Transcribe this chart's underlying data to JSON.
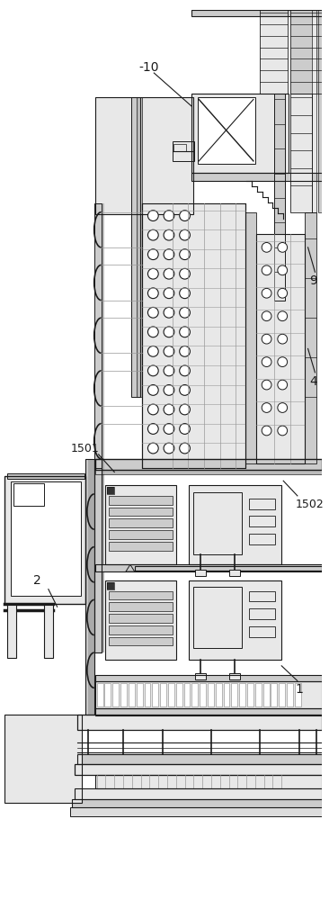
{
  "bg_color": "#ffffff",
  "lc": "#1a1a1a",
  "fl": "#e8e8e8",
  "fm": "#cccccc",
  "mg": "#999999"
}
